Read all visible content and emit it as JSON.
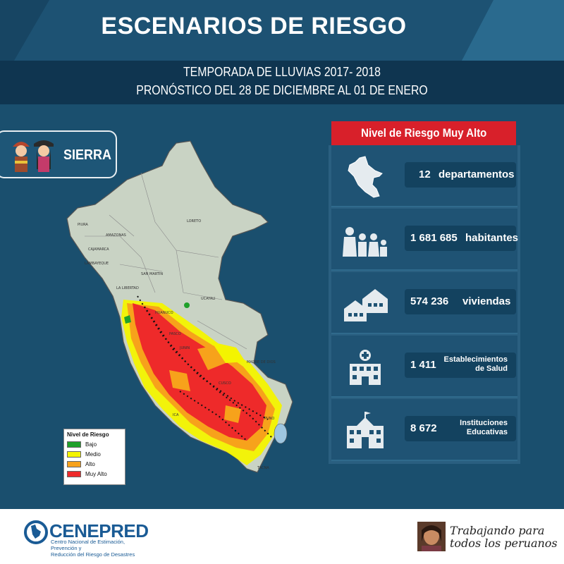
{
  "header": {
    "title": "ESCENARIOS DE RIESGO",
    "subtitle_line1": "TEMPORADA DE LLUVIAS 2017- 2018",
    "subtitle_line2": "PRONÓSTICO DEL 28 DE DICIEMBRE AL 01 DE ENERO"
  },
  "region_tag": {
    "label": "SIERRA"
  },
  "map": {
    "region_labels": [
      "LORETO",
      "AMAZONAS",
      "SAN MARTIN",
      "LA LIBERTAD",
      "CAJAMARCA",
      "LAMBAYEQUE",
      "PIURA",
      "UCAYALI",
      "MADRE DE DIOS",
      "HUANUCO",
      "PASCO",
      "JUNIN",
      "CUSCO",
      "PUNO",
      "TACNA",
      "ICA"
    ],
    "legend": {
      "title": "Nivel de Riesgo",
      "items": [
        {
          "label": "Bajo",
          "color": "#1fa02a"
        },
        {
          "label": "Medio",
          "color": "#f4f400"
        },
        {
          "label": "Alto",
          "color": "#f7a21b"
        },
        {
          "label": "Muy Alto",
          "color": "#ee2a2a"
        }
      ]
    }
  },
  "panel": {
    "heading": "Nivel de Riesgo Muy Alto",
    "stats": [
      {
        "value": "12",
        "label": "departamentos",
        "icon": "peru-map-icon"
      },
      {
        "value": "1 681 685",
        "label": "habitantes",
        "icon": "people-icon"
      },
      {
        "value": "574 236",
        "label": "viviendas",
        "icon": "houses-icon"
      },
      {
        "value": "1 411",
        "label_line1": "Establecimientos",
        "label_line2": "de Salud",
        "icon": "hospital-icon"
      },
      {
        "value": "8 672",
        "label_line1": "Instituciones",
        "label_line2": "Educativas",
        "icon": "school-icon"
      }
    ]
  },
  "footer": {
    "org_name": "CENEPRED",
    "org_line1": "Centro Nacional de Estimación, Prevención y",
    "org_line2": "Reducción del Riesgo de Desastres",
    "slogan_line1": "Trabajando para",
    "slogan_line2": "todos los peruanos"
  },
  "colors": {
    "background": "#1a4f6e",
    "accent_red": "#d8202a",
    "brand_blue": "#1a5b95"
  }
}
